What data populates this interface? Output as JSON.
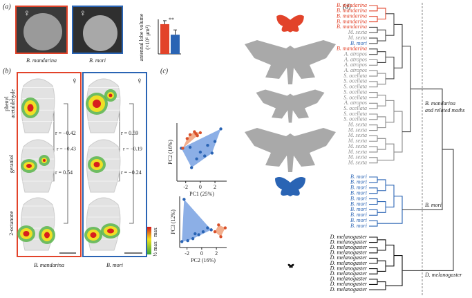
{
  "figure": {
    "a": {
      "label": "(a)",
      "female": "♀",
      "captions": [
        "B. mandarina",
        "B. mori"
      ],
      "chart": {
        "type": "bar",
        "ylabel": [
          "antennal lobe volume",
          "(×10⁶ μm³)"
        ],
        "significance": "**",
        "values": [
          15.5,
          10
        ],
        "errors": [
          1.8,
          2.5
        ],
        "colors": [
          "#e2432a",
          "#2a64b4"
        ],
        "ylim": [
          0,
          18
        ]
      }
    },
    "b": {
      "label": "(b)",
      "female": "♀",
      "odors": [
        [
          "phenyl",
          "acetaldehyde"
        ],
        [
          "geraniol"
        ],
        [
          "2-octanone"
        ]
      ],
      "correlations": [
        [
          "r = −0.42",
          "r = −0.43",
          "r = 0.54"
        ],
        [
          "r = 0.59",
          "r = −0.19",
          "r = −0.24"
        ]
      ],
      "colorbar": [
        "max",
        "½ max"
      ],
      "captions": [
        "B. mandarina",
        "B. mori"
      ]
    },
    "c": {
      "label": "(c)",
      "plots": [
        {
          "type": "scatter",
          "xlabel": "PC1 (25%)",
          "ylabel": "PC2 (16%)",
          "xlim": [
            -3.2,
            3.6
          ],
          "ylim": [
            -3,
            3
          ],
          "xticks": [
            -2,
            0,
            2
          ],
          "series": [
            {
              "color": "#2a64b4",
              "hull": "#6f9be0",
              "x": [
                -2.6,
                -1.4,
                0,
                0.6,
                1.6,
                2.8,
                1,
                -0.5,
                -1.2,
                2
              ],
              "y": [
                0.4,
                0.5,
                0,
                -0.4,
                -0.1,
                2.4,
                0.7,
                -0.7,
                -1.6,
                1.1
              ]
            },
            {
              "color": "#d9502a",
              "hull": "#ef9a70",
              "x": [
                -2.4,
                -1.8,
                -1.4,
                -0.8,
                -0.6,
                -0.4,
                0
              ],
              "y": [
                0.4,
                1.4,
                1.8,
                2.1,
                1.9,
                1.7,
                2.0
              ]
            }
          ]
        },
        {
          "type": "scatter",
          "xlabel": "PC2 (16%)",
          "ylabel": "PC3 (12%)",
          "xlim": [
            -3,
            3.4
          ],
          "ylim": [
            -2,
            3.2
          ],
          "xticks": [
            -2,
            0,
            2
          ],
          "series": [
            {
              "color": "#2a64b4",
              "hull": "#6f9be0",
              "x": [
                -2.7,
                -1.9,
                -1.2,
                -0.4,
                0.2,
                0.8,
                1.3,
                -2.4,
                -0.9
              ],
              "y": [
                -1.4,
                -1.3,
                -1.1,
                -0.7,
                -0.4,
                0,
                -0.2,
                2.9,
                -0.6
              ]
            },
            {
              "color": "#d9502a",
              "hull": "#ef9a70",
              "x": [
                1.8,
                2.6,
                3.2,
                2.3
              ],
              "y": [
                -0.4,
                -0.9,
                0,
                0.3
              ]
            }
          ]
        }
      ]
    },
    "d": {
      "label": "(d)",
      "colors": {
        "B. mandarina": "#e2432a",
        "B. mori": "#2a64b4",
        "M. sexta": "#8a8a8a",
        "A. atropos": "#8a8a8a",
        "S. ocellata": "#8a8a8a",
        "D. melanogaster": "#111111"
      },
      "groups": [
        {
          "label": [
            "B. mandarina",
            "and related moths"
          ],
          "leaves": [
            "B. mandarina",
            "B. mandarina",
            "B. mandarina",
            "B. mandarina",
            "B. mandarina",
            "M. sexta",
            "M. sexta",
            "B. mori",
            "B. mandarina",
            "A. atropos",
            "A. atropos",
            "A. atropos",
            "A. atropos",
            "S. ocellata",
            "S. ocellata",
            "S. ocellata",
            "S. ocellata",
            "S. ocellata",
            "A. atropos",
            "S. ocellata",
            "S. ocellata",
            "S. ocellata",
            "M. sexta",
            "M. sexta",
            "M. sexta",
            "M. sexta",
            "M. sexta",
            "M. sexta",
            "M. sexta",
            "M. sexta"
          ]
        },
        {
          "label": [
            "B. mori"
          ],
          "leaves": [
            "B. mori",
            "B. mori",
            "B. mori",
            "B. mori",
            "B. mori",
            "B. mori",
            "B. mori",
            "B. mori",
            "B. mori",
            "B. mori"
          ]
        },
        {
          "label": [
            "D. melanogaster"
          ],
          "leaves": [
            "D. melanogaster",
            "D. melanogaster",
            "D. melanogaster",
            "D. melanogaster",
            "D. melanogaster",
            "D. melanogaster",
            "D. melanogaster",
            "D. melanogaster",
            "D. melanogaster",
            "D. melanogaster",
            "D. melanogaster"
          ]
        }
      ]
    }
  }
}
